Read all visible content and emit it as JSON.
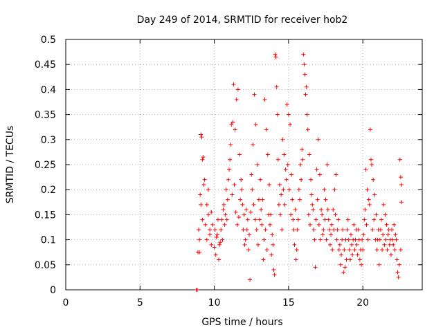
{
  "chart_data": {
    "type": "scatter",
    "title": "Day 249 of 2014, SRMTID for receiver hob2",
    "xlabel": "GPS time / hours",
    "ylabel": "SRMTID / TECUs",
    "xlim": [
      0,
      24
    ],
    "ylim": [
      0,
      0.5
    ],
    "x_ticks": [
      0,
      5,
      10,
      15,
      20
    ],
    "x_tick_labels": [
      "0",
      "5",
      "10",
      "15",
      "20"
    ],
    "y_ticks": [
      0,
      0.05,
      0.1,
      0.15,
      0.2,
      0.25,
      0.3,
      0.35,
      0.4,
      0.45,
      0.5
    ],
    "y_tick_labels": [
      "0",
      "0.05",
      "0.1",
      "0.15",
      "0.2",
      "0.25",
      "0.3",
      "0.35",
      "0.4",
      "0.45",
      "0.5"
    ],
    "grid": true,
    "marker": "+",
    "point_color": "#ff0000",
    "series": [
      {
        "name": "SRMTID",
        "points": [
          [
            8.8,
            0.0
          ],
          [
            8.85,
            0.0
          ],
          [
            8.9,
            0.075
          ],
          [
            9.0,
            0.075
          ],
          [
            9.1,
            0.31
          ],
          [
            9.15,
            0.305
          ],
          [
            9.2,
            0.26
          ],
          [
            9.25,
            0.265
          ],
          [
            9.3,
            0.21
          ],
          [
            9.35,
            0.22
          ],
          [
            9.05,
            0.19
          ],
          [
            9.1,
            0.17
          ],
          [
            8.95,
            0.12
          ],
          [
            9.0,
            0.1
          ],
          [
            9.2,
            0.14
          ],
          [
            9.4,
            0.13
          ],
          [
            9.5,
            0.1
          ],
          [
            9.6,
            0.15
          ],
          [
            9.7,
            0.11
          ],
          [
            9.8,
            0.09
          ],
          [
            10.0,
            0.085
          ],
          [
            10.1,
            0.07
          ],
          [
            10.2,
            0.11
          ],
          [
            10.3,
            0.06
          ],
          [
            10.4,
            0.095
          ],
          [
            10.5,
            0.14
          ],
          [
            10.6,
            0.16
          ],
          [
            10.7,
            0.13
          ],
          [
            10.8,
            0.2
          ],
          [
            10.9,
            0.18
          ],
          [
            11.0,
            0.24
          ],
          [
            11.1,
            0.29
          ],
          [
            11.15,
            0.33
          ],
          [
            11.25,
            0.335
          ],
          [
            11.3,
            0.41
          ],
          [
            11.4,
            0.32
          ],
          [
            11.5,
            0.38
          ],
          [
            11.6,
            0.4
          ],
          [
            11.7,
            0.27
          ],
          [
            11.8,
            0.22
          ],
          [
            11.9,
            0.17
          ],
          [
            12.0,
            0.15
          ],
          [
            12.1,
            0.1
          ],
          [
            12.2,
            0.12
          ],
          [
            12.3,
            0.08
          ],
          [
            12.4,
            0.02
          ],
          [
            12.5,
            0.23
          ],
          [
            12.6,
            0.29
          ],
          [
            12.7,
            0.39
          ],
          [
            12.8,
            0.33
          ],
          [
            12.9,
            0.25
          ],
          [
            13.0,
            0.18
          ],
          [
            13.1,
            0.22
          ],
          [
            13.2,
            0.13
          ],
          [
            13.3,
            0.06
          ],
          [
            13.4,
            0.38
          ],
          [
            13.5,
            0.32
          ],
          [
            13.6,
            0.27
          ],
          [
            13.7,
            0.21
          ],
          [
            13.8,
            0.15
          ],
          [
            13.9,
            0.11
          ],
          [
            14.0,
            0.04
          ],
          [
            14.05,
            0.03
          ],
          [
            14.1,
            0.47
          ],
          [
            14.15,
            0.465
          ],
          [
            14.2,
            0.405
          ],
          [
            14.25,
            0.35
          ],
          [
            14.3,
            0.26
          ],
          [
            14.4,
            0.21
          ],
          [
            14.5,
            0.19
          ],
          [
            14.6,
            0.3
          ],
          [
            14.7,
            0.27
          ],
          [
            14.8,
            0.24
          ],
          [
            14.9,
            0.37
          ],
          [
            15.0,
            0.35
          ],
          [
            15.1,
            0.33
          ],
          [
            15.2,
            0.23
          ],
          [
            15.3,
            0.14
          ],
          [
            15.4,
            0.09
          ],
          [
            15.5,
            0.06
          ],
          [
            15.6,
            0.12
          ],
          [
            15.7,
            0.2
          ],
          [
            15.8,
            0.25
          ],
          [
            15.9,
            0.28
          ],
          [
            16.0,
            0.47
          ],
          [
            16.05,
            0.45
          ],
          [
            16.1,
            0.43
          ],
          [
            16.15,
            0.39
          ],
          [
            16.2,
            0.405
          ],
          [
            16.25,
            0.35
          ],
          [
            16.3,
            0.32
          ],
          [
            16.4,
            0.27
          ],
          [
            16.5,
            0.22
          ],
          [
            16.6,
            0.17
          ],
          [
            16.7,
            0.12
          ],
          [
            16.8,
            0.045
          ],
          [
            16.9,
            0.24
          ],
          [
            17.0,
            0.3
          ],
          [
            17.1,
            0.23
          ],
          [
            17.2,
            0.16
          ],
          [
            17.3,
            0.11
          ],
          [
            17.4,
            0.2
          ],
          [
            17.5,
            0.18
          ],
          [
            17.6,
            0.25
          ],
          [
            17.7,
            0.14
          ],
          [
            17.8,
            0.09
          ],
          [
            17.9,
            0.13
          ],
          [
            18.0,
            0.16
          ],
          [
            18.1,
            0.2
          ],
          [
            18.2,
            0.23
          ],
          [
            18.3,
            0.12
          ],
          [
            18.4,
            0.08
          ],
          [
            18.5,
            0.05
          ],
          [
            18.6,
            0.1
          ],
          [
            18.7,
            0.035
          ],
          [
            18.8,
            0.045
          ],
          [
            18.9,
            0.06
          ],
          [
            19.0,
            0.14
          ],
          [
            19.1,
            0.08
          ],
          [
            19.2,
            0.11
          ],
          [
            19.3,
            0.07
          ],
          [
            19.4,
            0.13
          ],
          [
            19.5,
            0.1
          ],
          [
            19.6,
            0.09
          ],
          [
            19.7,
            0.12
          ],
          [
            19.8,
            0.06
          ],
          [
            19.9,
            0.05
          ],
          [
            20.0,
            0.08
          ],
          [
            20.1,
            0.14
          ],
          [
            20.2,
            0.24
          ],
          [
            20.3,
            0.2
          ],
          [
            20.4,
            0.18
          ],
          [
            20.5,
            0.32
          ],
          [
            20.55,
            0.26
          ],
          [
            20.6,
            0.25
          ],
          [
            20.7,
            0.22
          ],
          [
            20.8,
            0.19
          ],
          [
            20.9,
            0.15
          ],
          [
            21.0,
            0.1
          ],
          [
            21.1,
            0.05
          ],
          [
            21.2,
            0.12
          ],
          [
            21.3,
            0.08
          ],
          [
            21.4,
            0.17
          ],
          [
            21.5,
            0.15
          ],
          [
            21.6,
            0.13
          ],
          [
            21.7,
            0.11
          ],
          [
            21.8,
            0.09
          ],
          [
            21.9,
            0.07
          ],
          [
            22.0,
            0.1
          ],
          [
            22.1,
            0.13
          ],
          [
            22.2,
            0.11
          ],
          [
            22.3,
            0.06
          ],
          [
            22.35,
            0.035
          ],
          [
            22.4,
            0.025
          ],
          [
            22.45,
            0.05
          ],
          [
            22.5,
            0.26
          ],
          [
            22.55,
            0.225
          ],
          [
            22.6,
            0.21
          ],
          [
            22.6,
            0.175
          ],
          [
            22.55,
            0.08
          ],
          [
            9.5,
            0.17
          ],
          [
            9.6,
            0.2
          ],
          [
            9.7,
            0.12
          ],
          [
            9.8,
            0.155
          ],
          [
            9.9,
            0.13
          ],
          [
            10.05,
            0.12
          ],
          [
            10.15,
            0.105
          ],
          [
            10.25,
            0.14
          ],
          [
            10.35,
            0.09
          ],
          [
            10.45,
            0.12
          ],
          [
            10.55,
            0.1
          ],
          [
            10.65,
            0.17
          ],
          [
            10.75,
            0.15
          ],
          [
            10.85,
            0.14
          ],
          [
            10.95,
            0.22
          ],
          [
            11.05,
            0.26
          ],
          [
            11.2,
            0.19
          ],
          [
            11.35,
            0.21
          ],
          [
            11.45,
            0.155
          ],
          [
            11.55,
            0.13
          ],
          [
            11.65,
            0.145
          ],
          [
            11.75,
            0.18
          ],
          [
            11.85,
            0.2
          ],
          [
            11.95,
            0.12
          ],
          [
            12.05,
            0.09
          ],
          [
            12.15,
            0.16
          ],
          [
            12.25,
            0.14
          ],
          [
            12.35,
            0.11
          ],
          [
            12.45,
            0.155
          ],
          [
            12.55,
            0.2
          ],
          [
            12.65,
            0.17
          ],
          [
            12.75,
            0.14
          ],
          [
            12.85,
            0.12
          ],
          [
            12.95,
            0.09
          ],
          [
            13.05,
            0.14
          ],
          [
            13.15,
            0.16
          ],
          [
            13.25,
            0.18
          ],
          [
            13.35,
            0.1
          ],
          [
            13.45,
            0.12
          ],
          [
            13.55,
            0.08
          ],
          [
            13.65,
            0.15
          ],
          [
            13.75,
            0.13
          ],
          [
            13.85,
            0.07
          ],
          [
            13.95,
            0.09
          ],
          [
            14.35,
            0.17
          ],
          [
            14.45,
            0.15
          ],
          [
            14.55,
            0.12
          ],
          [
            14.65,
            0.2
          ],
          [
            14.75,
            0.17
          ],
          [
            14.85,
            0.22
          ],
          [
            14.95,
            0.25
          ],
          [
            15.05,
            0.2
          ],
          [
            15.15,
            0.15
          ],
          [
            15.25,
            0.18
          ],
          [
            15.35,
            0.12
          ],
          [
            15.45,
            0.16
          ],
          [
            15.55,
            0.08
          ],
          [
            15.65,
            0.14
          ],
          [
            15.75,
            0.18
          ],
          [
            15.85,
            0.22
          ],
          [
            15.95,
            0.26
          ],
          [
            16.35,
            0.15
          ],
          [
            16.45,
            0.13
          ],
          [
            16.55,
            0.19
          ],
          [
            16.65,
            0.16
          ],
          [
            16.75,
            0.1
          ],
          [
            16.85,
            0.14
          ],
          [
            16.95,
            0.18
          ],
          [
            17.05,
            0.13
          ],
          [
            17.15,
            0.1
          ],
          [
            17.25,
            0.15
          ],
          [
            17.35,
            0.12
          ],
          [
            17.45,
            0.14
          ],
          [
            17.55,
            0.1
          ],
          [
            17.65,
            0.16
          ],
          [
            17.75,
            0.12
          ],
          [
            17.85,
            0.11
          ],
          [
            17.95,
            0.08
          ],
          [
            18.05,
            0.12
          ],
          [
            18.15,
            0.15
          ],
          [
            18.25,
            0.1
          ],
          [
            18.35,
            0.14
          ],
          [
            18.45,
            0.09
          ],
          [
            18.55,
            0.07
          ],
          [
            18.65,
            0.12
          ],
          [
            18.75,
            0.08
          ],
          [
            18.85,
            0.1
          ],
          [
            18.95,
            0.12
          ],
          [
            19.05,
            0.1
          ],
          [
            19.15,
            0.06
          ],
          [
            19.25,
            0.09
          ],
          [
            19.35,
            0.1
          ],
          [
            19.45,
            0.08
          ],
          [
            19.55,
            0.12
          ],
          [
            19.65,
            0.07
          ],
          [
            19.75,
            0.1
          ],
          [
            19.85,
            0.08
          ],
          [
            19.95,
            0.1
          ],
          [
            20.05,
            0.11
          ],
          [
            20.15,
            0.16
          ],
          [
            20.25,
            0.13
          ],
          [
            20.35,
            0.1
          ],
          [
            20.45,
            0.17
          ],
          [
            20.65,
            0.12
          ],
          [
            20.75,
            0.14
          ],
          [
            20.85,
            0.1
          ],
          [
            20.95,
            0.08
          ],
          [
            21.05,
            0.12
          ],
          [
            21.15,
            0.1
          ],
          [
            21.25,
            0.14
          ],
          [
            21.35,
            0.11
          ],
          [
            21.45,
            0.09
          ],
          [
            21.55,
            0.1
          ],
          [
            21.65,
            0.08
          ],
          [
            21.75,
            0.12
          ],
          [
            21.85,
            0.1
          ],
          [
            21.95,
            0.12
          ],
          [
            22.05,
            0.09
          ],
          [
            22.15,
            0.08
          ],
          [
            22.25,
            0.1
          ]
        ]
      }
    ]
  }
}
